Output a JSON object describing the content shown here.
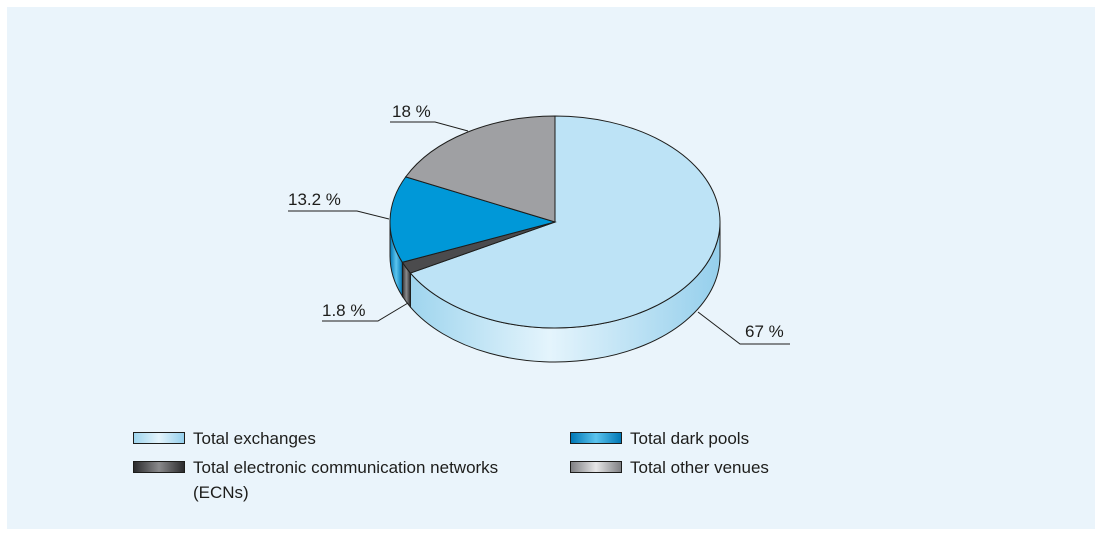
{
  "chart_data": {
    "type": "pie",
    "title": "",
    "slices": [
      {
        "name": "Total exchanges",
        "value": 67,
        "label": "67 %",
        "color": "#bde3f6"
      },
      {
        "name": "Total electronic communication networks (ECNs)",
        "value": 1.8,
        "label": "1.8 %",
        "color": "#4b4b4d"
      },
      {
        "name": "Total dark pools",
        "value": 13.2,
        "label": "13.2 %",
        "color": "#0098d8"
      },
      {
        "name": "Total other venues",
        "value": 18,
        "label": "18 %",
        "color": "#9fa0a3"
      }
    ],
    "style": "3d",
    "legend": "bottom"
  }
}
